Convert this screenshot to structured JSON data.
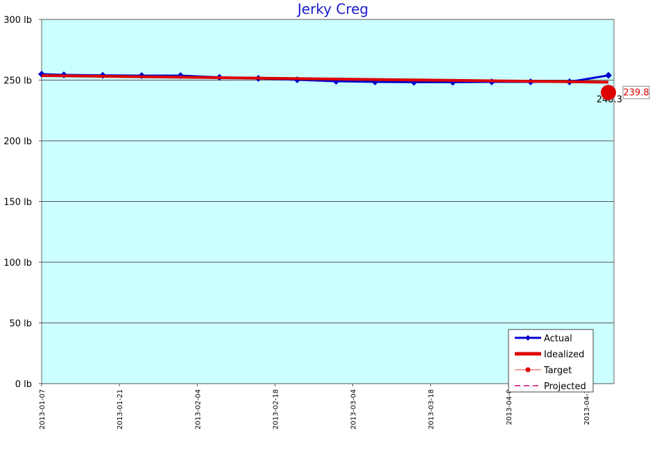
{
  "chart_data": {
    "type": "line",
    "title": "Jerky Creg",
    "xlim": [
      "2013-01-07",
      "2013-04-20"
    ],
    "xticks": [
      "2013-01-07",
      "2013-01-21",
      "2013-02-04",
      "2013-02-18",
      "2013-03-04",
      "2013-03-18",
      {
        "value": "2013-04-01",
        "label": "2013-04-0"
      },
      {
        "value": "2013-04-15",
        "label": "2013-04-1"
      }
    ],
    "ylim": [
      0,
      300
    ],
    "yticks": [
      {
        "value": 0,
        "label": "0 lb"
      },
      {
        "value": 50,
        "label": "50 lb"
      },
      {
        "value": 100,
        "label": "100 lb"
      },
      {
        "value": 150,
        "label": "150 lb"
      },
      {
        "value": 200,
        "label": "200 lb"
      },
      {
        "value": 250,
        "label": "250 lb"
      },
      {
        "value": 300,
        "label": "300 lb"
      }
    ],
    "grid": true,
    "legend": "lower right",
    "series": [
      {
        "name": "Actual",
        "color": "#0000cc",
        "x": [
          "2013-01-07",
          "2013-01-11",
          "2013-01-18",
          "2013-01-25",
          "2013-02-01",
          "2013-02-08",
          "2013-02-15",
          "2013-02-22",
          "2013-03-01",
          "2013-03-08",
          "2013-03-15",
          "2013-03-22",
          "2013-03-29",
          "2013-04-05",
          "2013-04-12",
          "2013-04-19"
        ],
        "values": [
          254.9,
          254.3,
          253.9,
          253.7,
          253.7,
          252.3,
          251.4,
          250.3,
          249.1,
          248.6,
          248.3,
          248.3,
          248.6,
          248.6,
          248.6,
          253.9
        ]
      },
      {
        "name": "Idealized",
        "color": "#dd0000",
        "x": [
          "2013-01-07",
          "2013-04-19"
        ],
        "values": [
          253.7,
          248.3
        ]
      },
      {
        "name": "Target",
        "color": "#dd0000",
        "x": [
          "2013-04-19"
        ],
        "values": [
          239.8
        ]
      },
      {
        "name": "Projected",
        "color": "#dd4499",
        "x": [],
        "values": []
      }
    ]
  }
}
